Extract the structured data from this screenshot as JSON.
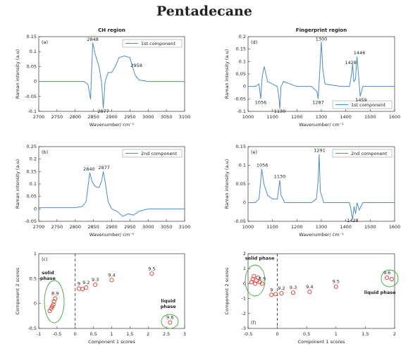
{
  "title": "Pentadecane",
  "chart_data": [
    {
      "type": "line",
      "title": "CH region",
      "panel_label": "(a)",
      "xlabel": "Wavenumber/ cm⁻¹",
      "ylabel": "Raman intensity (a.u)",
      "xlim": [
        2700,
        3100
      ],
      "ylim": [
        -0.1,
        0.15
      ],
      "xticks": [
        2700,
        2750,
        2800,
        2850,
        2900,
        2950,
        3000,
        3050,
        3100
      ],
      "yticks": [
        -0.1,
        -0.05,
        0,
        0.05,
        0.1,
        0.15
      ],
      "legend": "top-right",
      "series": [
        {
          "name": "1st component",
          "color": "#4a8ccc",
          "x": [
            2700,
            2750,
            2800,
            2825,
            2835,
            2842,
            2848,
            2855,
            2865,
            2872,
            2877,
            2882,
            2890,
            2900,
            2910,
            2920,
            2935,
            2950,
            2958,
            2965,
            2975,
            3000,
            3050,
            3100
          ],
          "values": [
            0,
            0,
            0,
            0,
            -0.01,
            -0.06,
            0.13,
            0.09,
            0.05,
            0.0,
            -0.09,
            0.0,
            0.03,
            0.03,
            0.05,
            0.08,
            0.085,
            0.08,
            0.045,
            0.02,
            0.005,
            0,
            0,
            0
          ]
        }
      ],
      "annotations": [
        {
          "label": "2848",
          "x": 2848,
          "y": 0.14
        },
        {
          "label": "2877",
          "x": 2877,
          "y": -0.1
        },
        {
          "label": "2958",
          "x": 2968,
          "y": 0.053
        }
      ]
    },
    {
      "type": "line",
      "panel_label": "(b)",
      "xlabel": "Wavenumber/ cm⁻¹",
      "ylabel": "Raman intensity (a.u)",
      "xlim": [
        2700,
        3100
      ],
      "ylim": [
        -0.05,
        0.25
      ],
      "xticks": [
        2700,
        2750,
        2800,
        2850,
        2900,
        2950,
        3000,
        3050,
        3100
      ],
      "yticks": [
        -0.05,
        0,
        0.05,
        0.1,
        0.15,
        0.2,
        0.25
      ],
      "legend": "top-right",
      "series": [
        {
          "name": "2nd component",
          "color": "#4a8ccc",
          "x": [
            2700,
            2750,
            2800,
            2820,
            2830,
            2836,
            2840,
            2846,
            2855,
            2865,
            2872,
            2877,
            2883,
            2890,
            2900,
            2915,
            2930,
            2945,
            2960,
            2975,
            3000,
            3050,
            3100
          ],
          "values": [
            0.005,
            0.005,
            0.005,
            0.01,
            0.03,
            0.1,
            0.145,
            0.11,
            0.09,
            0.085,
            0.11,
            0.15,
            0.1,
            0.03,
            0.0,
            -0.01,
            -0.03,
            -0.02,
            -0.025,
            -0.01,
            0,
            0,
            0
          ]
        }
      ],
      "annotations": [
        {
          "label": "2840",
          "x": 2838,
          "y": 0.16
        },
        {
          "label": "2877",
          "x": 2879,
          "y": 0.165
        }
      ]
    },
    {
      "type": "scatter",
      "panel_label": "(c)",
      "xlabel": "Component 1 scores",
      "ylabel": "Component 2 scores",
      "xlim": [
        -1,
        3
      ],
      "ylim": [
        -0.5,
        1
      ],
      "xticks": [
        -1,
        -0.5,
        0,
        0.5,
        1,
        1.5,
        2,
        2.5,
        3
      ],
      "yticks": [
        -0.5,
        0,
        0.5,
        1
      ],
      "color": "#e0382b",
      "x": [
        -0.7,
        -0.66,
        -0.63,
        -0.6,
        -0.58,
        -0.55,
        0.1,
        0.2,
        0.3,
        0.55,
        1.0,
        2.1,
        2.6
      ],
      "values": [
        -0.15,
        -0.1,
        -0.06,
        -0.02,
        0.04,
        0.1,
        0.3,
        0.29,
        0.32,
        0.38,
        0.47,
        0.6,
        -0.38
      ],
      "point_labels": [
        null,
        null,
        null,
        null,
        null,
        "8.9",
        "9",
        null,
        "9.2",
        "9.3",
        "9.4",
        "9.5",
        "9.6"
      ],
      "phase_labels": [
        {
          "lines": [
            "solid",
            "phase"
          ],
          "x": -0.75,
          "y": 0.62
        },
        {
          "lines": [
            "liquid",
            "phase"
          ],
          "x": 2.55,
          "y": 0.05
        }
      ]
    },
    {
      "type": "line",
      "title": "Fingerprint region",
      "panel_label": "(d)",
      "xlabel": "Wavenumber/ cm⁻¹",
      "ylabel": "Raman intensity (a.u)",
      "xlim": [
        1000,
        1600
      ],
      "ylim": [
        -0.1,
        0.2
      ],
      "xticks": [
        1000,
        1100,
        1200,
        1300,
        1400,
        1500,
        1600
      ],
      "yticks": [
        -0.1,
        -0.05,
        0,
        0.05,
        0.1,
        0.15,
        0.2
      ],
      "legend": "bottom-right",
      "series": [
        {
          "name": "1st component",
          "color": "#4a8ccc",
          "x": [
            1000,
            1030,
            1045,
            1052,
            1058,
            1066,
            1080,
            1100,
            1120,
            1126,
            1130,
            1135,
            1145,
            1200,
            1260,
            1282,
            1287,
            1293,
            1300,
            1306,
            1315,
            1380,
            1415,
            1424,
            1428,
            1433,
            1440,
            1446,
            1452,
            1459,
            1470,
            1500,
            1550,
            1600
          ],
          "values": [
            0,
            0,
            0.01,
            -0.05,
            0.04,
            0.08,
            0.02,
            0.01,
            0.0,
            -0.04,
            -0.09,
            0.0,
            0.02,
            0.0,
            0.0,
            -0.02,
            -0.05,
            0.05,
            0.18,
            0.07,
            0.01,
            0.0,
            0.0,
            0.05,
            0.09,
            0.02,
            0.03,
            0.12,
            0.05,
            -0.04,
            0.0,
            0.0,
            0.0,
            0.0
          ]
        }
      ],
      "annotations": [
        {
          "label": "1300",
          "x": 1300,
          "y": 0.19
        },
        {
          "label": "1446",
          "x": 1456,
          "y": 0.135
        },
        {
          "label": "1428",
          "x": 1420,
          "y": 0.095
        },
        {
          "label": "1056",
          "x": 1052,
          "y": -0.065
        },
        {
          "label": "1130",
          "x": 1130,
          "y": -0.1
        },
        {
          "label": "1287",
          "x": 1287,
          "y": -0.065
        },
        {
          "label": "1459",
          "x": 1463,
          "y": -0.055
        }
      ]
    },
    {
      "type": "line",
      "panel_label": "(e)",
      "xlabel": "Wavenumber/ cm⁻¹",
      "ylabel": "Raman intensity (a.u)",
      "xlim": [
        1000,
        1600
      ],
      "ylim": [
        -0.05,
        0.15
      ],
      "xticks": [
        1000,
        1100,
        1200,
        1300,
        1400,
        1500,
        1600
      ],
      "yticks": [
        -0.05,
        0,
        0.05,
        0.1,
        0.15
      ],
      "legend": "top-right",
      "series": [
        {
          "name": "2nd component",
          "color": "#4a8ccc",
          "x": [
            1000,
            1030,
            1045,
            1052,
            1056,
            1065,
            1080,
            1100,
            1120,
            1126,
            1130,
            1135,
            1150,
            1200,
            1260,
            1280,
            1287,
            1291,
            1296,
            1310,
            1380,
            1415,
            1422,
            1428,
            1434,
            1440,
            1446,
            1455,
            1470,
            1500,
            1550,
            1600
          ],
          "values": [
            0,
            0,
            0.01,
            0.06,
            0.09,
            0.05,
            0.02,
            0.01,
            0.01,
            0.04,
            0.06,
            0.02,
            0.0,
            0.0,
            0.0,
            0.01,
            0.06,
            0.13,
            0.03,
            0.0,
            0.0,
            0.0,
            -0.02,
            -0.045,
            -0.01,
            -0.03,
            0.0,
            -0.02,
            0.0,
            0.0,
            0.0,
            0.0
          ]
        }
      ],
      "annotations": [
        {
          "label": "1056",
          "x": 1058,
          "y": 0.1
        },
        {
          "label": "1130",
          "x": 1130,
          "y": 0.07
        },
        {
          "label": "1291",
          "x": 1293,
          "y": 0.14
        },
        {
          "label": "1428",
          "x": 1428,
          "y": -0.048
        }
      ]
    },
    {
      "type": "scatter",
      "panel_label": "(f)",
      "label_corner": "bottom-left",
      "xlabel": "Component 1 scores",
      "ylabel": "Component 2 scores",
      "xlim": [
        -0.5,
        2
      ],
      "ylim": [
        -3,
        2
      ],
      "xticks": [
        -0.5,
        0,
        0.5,
        1,
        1.5,
        2
      ],
      "yticks": [
        -3,
        -2,
        -1,
        0,
        1,
        2
      ],
      "color": "#e0382b",
      "x": [
        -0.44,
        -0.42,
        -0.4,
        -0.38,
        -0.36,
        -0.33,
        -0.3,
        -0.26,
        -0.1,
        -0.03,
        0.07,
        0.27,
        0.55,
        1.0,
        1.87,
        1.95
      ],
      "values": [
        0.1,
        0.3,
        0.5,
        0.0,
        0.2,
        0.4,
        0.1,
        0.0,
        -0.75,
        -0.7,
        -0.65,
        -0.6,
        -0.55,
        -0.2,
        0.4,
        0.3
      ],
      "point_labels": [
        null,
        null,
        null,
        null,
        null,
        null,
        null,
        "8.9",
        "9",
        null,
        "9.2",
        "9.3",
        "9.4",
        "9.5",
        "9.6",
        null
      ],
      "phase_labels": [
        {
          "lines": [
            "solid phase"
          ],
          "x": -0.3,
          "y": 1.7
        },
        {
          "lines": [
            "liquid phase"
          ],
          "x": 1.75,
          "y": -0.6
        }
      ]
    }
  ]
}
